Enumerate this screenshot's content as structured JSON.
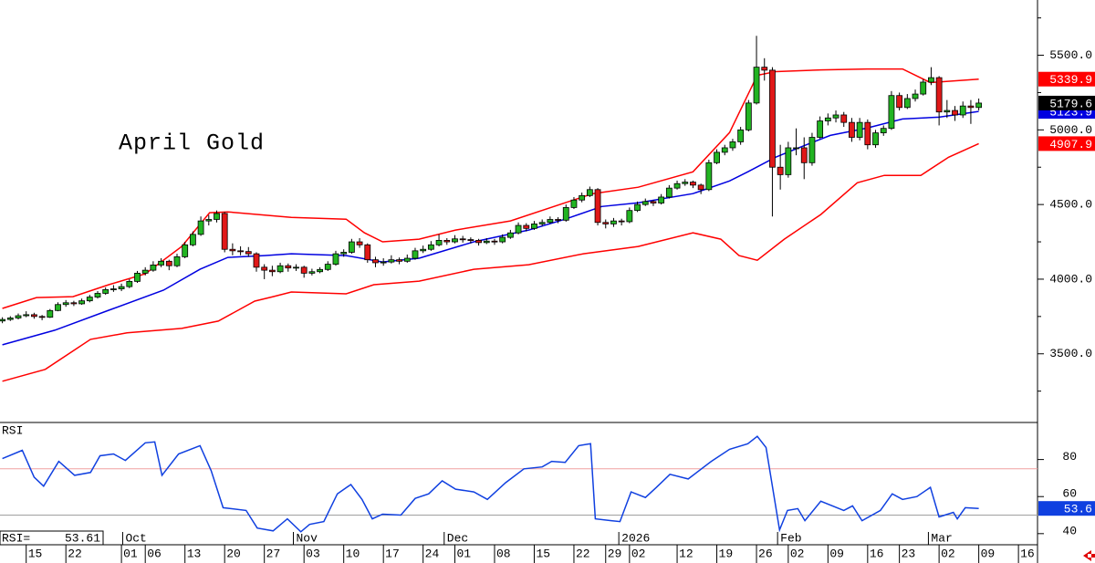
{
  "chart_data": {
    "type": "candlestick",
    "title": "April Gold",
    "xlim": [
      -0.3,
      130.4
    ],
    "ylim": [
      3040,
      5870
    ],
    "yticks": [
      {
        "value": 3500,
        "label": "3500.0"
      },
      {
        "value": 4000,
        "label": "4000.0"
      },
      {
        "value": 4500,
        "label": "4500.0"
      },
      {
        "value": 5000,
        "label": "5000.0"
      },
      {
        "value": 5500,
        "label": "5500.0"
      }
    ],
    "yticks_minor": [
      3250,
      3750,
      4250,
      4750,
      5250,
      5750
    ],
    "xticks": [
      {
        "value": 3,
        "label": "15"
      },
      {
        "value": 8,
        "label": "22"
      },
      {
        "value": 15,
        "label": "01"
      },
      {
        "value": 18,
        "label": "06"
      },
      {
        "value": 23,
        "label": "13"
      },
      {
        "value": 28,
        "label": "20"
      },
      {
        "value": 33,
        "label": "27"
      },
      {
        "value": 38,
        "label": "03"
      },
      {
        "value": 43,
        "label": "10"
      },
      {
        "value": 48,
        "label": "17"
      },
      {
        "value": 53,
        "label": "24"
      },
      {
        "value": 57,
        "label": "01"
      },
      {
        "value": 62,
        "label": "08"
      },
      {
        "value": 67,
        "label": "15"
      },
      {
        "value": 72,
        "label": "22"
      },
      {
        "value": 76,
        "label": "29"
      },
      {
        "value": 79,
        "label": "02"
      },
      {
        "value": 85,
        "label": "12"
      },
      {
        "value": 90,
        "label": "19"
      },
      {
        "value": 95,
        "label": "26"
      },
      {
        "value": 99,
        "label": "02"
      },
      {
        "value": 104,
        "label": "09"
      },
      {
        "value": 109,
        "label": "16"
      },
      {
        "value": 113,
        "label": "23"
      },
      {
        "value": 118,
        "label": "02"
      },
      {
        "value": 123,
        "label": "09"
      },
      {
        "value": 128,
        "label": "16"
      }
    ],
    "month_labels": [
      {
        "value": 15.5,
        "label": "Oct"
      },
      {
        "value": 37,
        "label": "Nov"
      },
      {
        "value": 56,
        "label": "Dec"
      },
      {
        "value": 78,
        "label": "2026"
      },
      {
        "value": 98,
        "label": "Feb"
      },
      {
        "value": 117,
        "label": "Mar"
      }
    ],
    "candles": {
      "up_color": "#22b422",
      "down_color": "#e01818",
      "ohlc": [
        [
          3720,
          3745,
          3705,
          3730
        ],
        [
          3730,
          3752,
          3720,
          3740
        ],
        [
          3740,
          3770,
          3730,
          3755
        ],
        [
          3755,
          3785,
          3745,
          3762
        ],
        [
          3762,
          3775,
          3735,
          3750
        ],
        [
          3750,
          3760,
          3725,
          3745
        ],
        [
          3745,
          3800,
          3740,
          3790
        ],
        [
          3790,
          3845,
          3785,
          3830
        ],
        [
          3830,
          3860,
          3815,
          3842
        ],
        [
          3842,
          3855,
          3820,
          3835
        ],
        [
          3835,
          3870,
          3828,
          3855
        ],
        [
          3855,
          3895,
          3845,
          3880
        ],
        [
          3880,
          3920,
          3870,
          3905
        ],
        [
          3905,
          3945,
          3895,
          3930
        ],
        [
          3930,
          3960,
          3915,
          3935
        ],
        [
          3935,
          3970,
          3920,
          3950
        ],
        [
          3950,
          4000,
          3940,
          3985
        ],
        [
          3985,
          4055,
          3975,
          4040
        ],
        [
          4040,
          4080,
          4025,
          4060
        ],
        [
          4060,
          4120,
          4050,
          4095
        ],
        [
          4095,
          4140,
          4080,
          4120
        ],
        [
          4120,
          4130,
          4060,
          4090
        ],
        [
          4090,
          4170,
          4080,
          4150
        ],
        [
          4150,
          4250,
          4140,
          4230
        ],
        [
          4230,
          4320,
          4220,
          4300
        ],
        [
          4300,
          4420,
          4290,
          4390
        ],
        [
          4390,
          4430,
          4360,
          4400
        ],
        [
          4400,
          4460,
          4380,
          4440
        ],
        [
          4440,
          4450,
          4180,
          4200
        ],
        [
          4200,
          4240,
          4160,
          4190
        ],
        [
          4190,
          4220,
          4160,
          4185
        ],
        [
          4185,
          4215,
          4150,
          4170
        ],
        [
          4170,
          4180,
          4050,
          4080
        ],
        [
          4080,
          4100,
          4000,
          4060
        ],
        [
          4060,
          4090,
          4020,
          4050
        ],
        [
          4050,
          4110,
          4040,
          4090
        ],
        [
          4090,
          4105,
          4050,
          4075
        ],
        [
          4075,
          4100,
          4055,
          4080
        ],
        [
          4080,
          4090,
          4010,
          4040
        ],
        [
          4040,
          4070,
          4025,
          4050
        ],
        [
          4050,
          4080,
          4040,
          4065
        ],
        [
          4065,
          4120,
          4055,
          4100
        ],
        [
          4100,
          4190,
          4090,
          4170
        ],
        [
          4170,
          4200,
          4150,
          4180
        ],
        [
          4180,
          4270,
          4170,
          4250
        ],
        [
          4250,
          4275,
          4210,
          4230
        ],
        [
          4230,
          4240,
          4110,
          4130
        ],
        [
          4130,
          4150,
          4080,
          4110
        ],
        [
          4110,
          4140,
          4090,
          4115
        ],
        [
          4115,
          4160,
          4105,
          4130
        ],
        [
          4130,
          4145,
          4100,
          4120
        ],
        [
          4120,
          4165,
          4110,
          4140
        ],
        [
          4140,
          4210,
          4130,
          4190
        ],
        [
          4190,
          4225,
          4175,
          4200
        ],
        [
          4200,
          4255,
          4190,
          4230
        ],
        [
          4230,
          4300,
          4220,
          4260
        ],
        [
          4260,
          4275,
          4230,
          4250
        ],
        [
          4250,
          4295,
          4240,
          4270
        ],
        [
          4270,
          4290,
          4245,
          4265
        ],
        [
          4265,
          4280,
          4240,
          4260
        ],
        [
          4260,
          4270,
          4225,
          4245
        ],
        [
          4245,
          4275,
          4235,
          4255
        ],
        [
          4255,
          4270,
          4230,
          4250
        ],
        [
          4250,
          4300,
          4240,
          4280
        ],
        [
          4280,
          4330,
          4270,
          4310
        ],
        [
          4310,
          4380,
          4300,
          4360
        ],
        [
          4360,
          4375,
          4320,
          4340
        ],
        [
          4340,
          4390,
          4330,
          4370
        ],
        [
          4370,
          4400,
          4355,
          4380
        ],
        [
          4380,
          4420,
          4370,
          4400
        ],
        [
          4400,
          4415,
          4375,
          4395
        ],
        [
          4395,
          4500,
          4385,
          4480
        ],
        [
          4480,
          4550,
          4470,
          4530
        ],
        [
          4530,
          4580,
          4515,
          4560
        ],
        [
          4560,
          4620,
          4550,
          4600
        ],
        [
          4600,
          4610,
          4360,
          4380
        ],
        [
          4380,
          4400,
          4340,
          4370
        ],
        [
          4370,
          4410,
          4350,
          4390
        ],
        [
          4390,
          4405,
          4360,
          4385
        ],
        [
          4385,
          4480,
          4375,
          4460
        ],
        [
          4460,
          4520,
          4450,
          4500
        ],
        [
          4500,
          4540,
          4490,
          4520
        ],
        [
          4520,
          4530,
          4490,
          4510
        ],
        [
          4510,
          4570,
          4500,
          4550
        ],
        [
          4550,
          4630,
          4540,
          4610
        ],
        [
          4610,
          4660,
          4600,
          4640
        ],
        [
          4640,
          4670,
          4625,
          4650
        ],
        [
          4650,
          4660,
          4610,
          4630
        ],
        [
          4630,
          4640,
          4570,
          4600
        ],
        [
          4600,
          4800,
          4590,
          4780
        ],
        [
          4780,
          4870,
          4770,
          4850
        ],
        [
          4850,
          4900,
          4830,
          4880
        ],
        [
          4880,
          4940,
          4860,
          4920
        ],
        [
          4920,
          5020,
          4900,
          5000
        ],
        [
          5000,
          5200,
          4990,
          5180
        ],
        [
          5180,
          5630,
          5170,
          5420
        ],
        [
          5420,
          5480,
          5330,
          5400
        ],
        [
          5400,
          5420,
          4420,
          4750
        ],
        [
          4750,
          4900,
          4600,
          4700
        ],
        [
          4700,
          4920,
          4680,
          4880
        ],
        [
          4880,
          5010,
          4830,
          4880
        ],
        [
          4880,
          4950,
          4670,
          4780
        ],
        [
          4780,
          4980,
          4760,
          4950
        ],
        [
          4950,
          5090,
          4940,
          5060
        ],
        [
          5060,
          5110,
          5030,
          5080
        ],
        [
          5080,
          5130,
          5050,
          5100
        ],
        [
          5100,
          5120,
          5020,
          5050
        ],
        [
          5050,
          5080,
          4920,
          4950
        ],
        [
          4950,
          5080,
          4930,
          5050
        ],
        [
          5050,
          5070,
          4870,
          4900
        ],
        [
          4900,
          5000,
          4880,
          4980
        ],
        [
          4980,
          5030,
          4960,
          5010
        ],
        [
          5010,
          5260,
          5000,
          5230
        ],
        [
          5230,
          5250,
          5130,
          5150
        ],
        [
          5150,
          5240,
          5140,
          5210
        ],
        [
          5210,
          5270,
          5190,
          5240
        ],
        [
          5240,
          5340,
          5230,
          5320
        ],
        [
          5320,
          5420,
          5300,
          5350
        ],
        [
          5350,
          5360,
          5030,
          5120
        ],
        [
          5120,
          5200,
          5080,
          5130
        ],
        [
          5130,
          5160,
          5060,
          5100
        ],
        [
          5100,
          5190,
          5080,
          5160
        ],
        [
          5160,
          5200,
          5040,
          5150
        ],
        [
          5150,
          5210,
          5130,
          5179.6
        ]
      ]
    },
    "series": [
      {
        "color": "#0000e0",
        "x": [
          0,
          6.6,
          13.4,
          20.3,
          24.9,
          28.4,
          33.0,
          36.4,
          43.3,
          47.9,
          52.5,
          59.4,
          66.3,
          70.9,
          75.5,
          80.1,
          87.0,
          91.6,
          93.9,
          97.4,
          100.8,
          104.3,
          108.9,
          113.4,
          118.0,
          123
        ],
        "values": [
          3560,
          3658,
          3792,
          3926,
          4066,
          4146,
          4158,
          4170,
          4158,
          4115,
          4140,
          4250,
          4329,
          4402,
          4487,
          4512,
          4573,
          4658,
          4719,
          4817,
          4890,
          4963,
          5012,
          5073,
          5085,
          5123.9
        ]
      },
      {
        "color": "#ff0000",
        "x": [
          0,
          4.3,
          8.9,
          13.4,
          18.0,
          22.6,
          26.1,
          28.4,
          36.4,
          43.3,
          45.6,
          47.9,
          52.5,
          57.1,
          64.0,
          70.9,
          74.4,
          80.1,
          87.0,
          91.6,
          95.1,
          97.4,
          103.1,
          108.9,
          113.4,
          116.9,
          123
        ],
        "values": [
          3804,
          3877,
          3883,
          3963,
          4036,
          4219,
          4445,
          4451,
          4414,
          4402,
          4311,
          4250,
          4268,
          4329,
          4390,
          4512,
          4573,
          4616,
          4719,
          4982,
          5366,
          5390,
          5402,
          5408,
          5408,
          5317,
          5339.9
        ]
      },
      {
        "color": "#ff0000",
        "x": [
          0,
          5.4,
          11.1,
          15.7,
          22.6,
          27.2,
          31.8,
          34.1,
          36.4,
          43.3,
          46.8,
          52.5,
          59.4,
          66.3,
          73.2,
          80.1,
          87.0,
          90.5,
          92.8,
          95.1,
          98.5,
          103.1,
          107.7,
          111.1,
          115.7,
          119.2,
          123
        ],
        "values": [
          3316,
          3396,
          3597,
          3640,
          3670,
          3719,
          3853,
          3883,
          3914,
          3902,
          3963,
          3987,
          4066,
          4097,
          4170,
          4219,
          4311,
          4268,
          4158,
          4127,
          4268,
          4433,
          4646,
          4695,
          4695,
          4817,
          4907.9
        ]
      }
    ],
    "price_tags": [
      {
        "value": 5339.9,
        "color": "#ff0000"
      },
      {
        "value": 4907.9,
        "color": "#ff0000"
      },
      {
        "value": 5123.9,
        "color": "#0000e0"
      },
      {
        "value": 5179.6,
        "color": "#000000"
      }
    ],
    "rsi": {
      "label": "RSI",
      "ylim": [
        34,
        100
      ],
      "yticks": [
        40,
        60,
        80
      ],
      "levels": [
        {
          "value": 75,
          "color": "#f0a0a0"
        },
        {
          "value": 50,
          "color": "#a0a0a0"
        }
      ],
      "color": "#1040e0",
      "x": [
        0,
        2.5,
        4.0,
        5.2,
        7.1,
        9.1,
        11.1,
        12.3,
        14.0,
        15.5,
        18.0,
        19.2,
        20.1,
        22.2,
        24.9,
        26.3,
        27.8,
        30.7,
        32.1,
        34.1,
        35.9,
        37.6,
        38.7,
        40.5,
        42.2,
        43.9,
        45.3,
        46.6,
        47.9,
        50.2,
        52.0,
        53.7,
        55.4,
        57.1,
        59.4,
        61.1,
        63.4,
        65.7,
        68.0,
        69.2,
        70.9,
        72.6,
        74.1,
        74.7,
        76.7,
        77.8,
        79.2,
        81.0,
        82.4,
        84.1,
        86.4,
        89.3,
        91.6,
        93.9,
        95.1,
        96.2,
        97.9,
        98.9,
        100.2,
        101.1,
        103.1,
        106.0,
        107.1,
        108.3,
        110.6,
        112.1,
        113.4,
        115.2,
        116.9,
        118.0,
        119.8,
        120.3,
        121.3,
        123
      ],
      "values": [
        80.5,
        85,
        70.5,
        65.6,
        79,
        71.5,
        73,
        82,
        83,
        79.5,
        89,
        89.5,
        71.5,
        83,
        87.5,
        74,
        54,
        52.5,
        43,
        41.5,
        48,
        41,
        45,
        46.5,
        61.5,
        66.5,
        58.5,
        48,
        50.5,
        50,
        59,
        61.5,
        68.5,
        64,
        62.5,
        58.5,
        67.5,
        75,
        76,
        79,
        78.5,
        87.5,
        88.5,
        48,
        47,
        46.5,
        62.5,
        59.5,
        65,
        72,
        69.5,
        79,
        85.5,
        88.5,
        92.5,
        86.5,
        42,
        52.5,
        53.5,
        47,
        57.5,
        52.5,
        55,
        47,
        52.5,
        61.5,
        58.5,
        60,
        65,
        49,
        51.5,
        48,
        54,
        53.61
      ],
      "tag": {
        "value": 53.61,
        "label": "53.6"
      },
      "readout": {
        "label": "RSI=",
        "value": 53.61
      }
    }
  }
}
